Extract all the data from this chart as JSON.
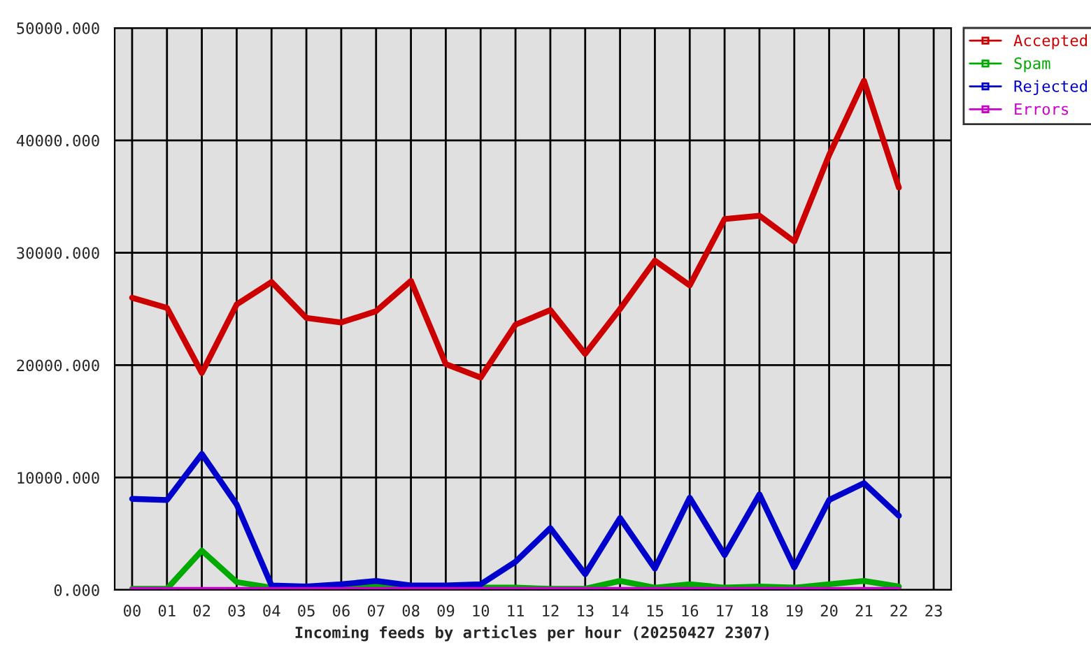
{
  "chart_data": {
    "type": "line",
    "xlabel": "Incoming feeds by articles per hour (20250427 2307)",
    "categories": [
      "00",
      "01",
      "02",
      "03",
      "04",
      "05",
      "06",
      "07",
      "08",
      "09",
      "10",
      "11",
      "12",
      "13",
      "14",
      "15",
      "16",
      "17",
      "18",
      "19",
      "20",
      "21",
      "22",
      "23"
    ],
    "series": [
      {
        "name": "Accepted",
        "color": "#cc0000",
        "values": [
          26000,
          25100,
          19300,
          25400,
          27400,
          24200,
          23800,
          24800,
          27500,
          20100,
          18900,
          23600,
          24900,
          21000,
          25000,
          29300,
          27100,
          33000,
          33300,
          31000,
          38700,
          45300,
          35800,
          null
        ]
      },
      {
        "name": "Spam",
        "color": "#00aa00",
        "values": [
          100,
          100,
          3500,
          700,
          200,
          100,
          200,
          300,
          null,
          null,
          200,
          200,
          100,
          100,
          800,
          200,
          500,
          200,
          300,
          200,
          500,
          800,
          300,
          null
        ]
      },
      {
        "name": "Rejected",
        "color": "#0000cc",
        "values": [
          8100,
          8000,
          12100,
          7600,
          400,
          300,
          500,
          800,
          400,
          400,
          500,
          2500,
          5500,
          1400,
          6400,
          1900,
          8200,
          3100,
          8500,
          2000,
          8000,
          9500,
          6600,
          null
        ]
      },
      {
        "name": "Errors",
        "color": "#cc00cc",
        "values": [
          0,
          0,
          0,
          0,
          0,
          0,
          0,
          0,
          0,
          0,
          0,
          0,
          0,
          0,
          0,
          0,
          0,
          0,
          0,
          0,
          0,
          0,
          0,
          null
        ]
      }
    ],
    "ylim": [
      0,
      50000
    ],
    "yticks": [
      {
        "value": 0,
        "label": "0.000"
      },
      {
        "value": 10000,
        "label": "10000.000"
      },
      {
        "value": 20000,
        "label": "20000.000"
      },
      {
        "value": 30000,
        "label": "30000.000"
      },
      {
        "value": 40000,
        "label": "40000.000"
      },
      {
        "value": 50000,
        "label": "50000.000"
      }
    ],
    "grid": true,
    "legend": "right"
  }
}
